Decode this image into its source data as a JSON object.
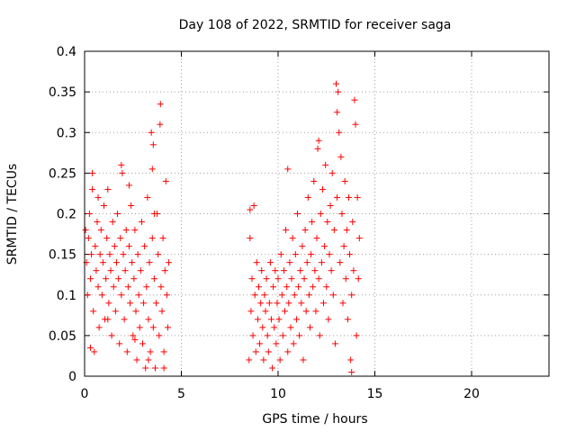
{
  "chart_data": {
    "type": "scatter",
    "title": "Day 108 of 2022, SRMTID for receiver saga",
    "xlabel": "GPS time / hours",
    "ylabel": "SRMTID / TECUs",
    "xlim": [
      0,
      24
    ],
    "ylim": [
      0,
      0.4
    ],
    "xticks": [
      0,
      5,
      10,
      15,
      20
    ],
    "xtick_labels": [
      "0",
      "5",
      "10",
      "15",
      "20"
    ],
    "yticks": [
      0,
      0.05,
      0.1,
      0.15,
      0.2,
      0.25,
      0.3,
      0.35,
      0.4
    ],
    "ytick_labels": [
      "0",
      "0.05",
      "0.1",
      "0.15",
      "0.2",
      "0.25",
      "0.3",
      "0.35",
      "0.4"
    ],
    "grid": true,
    "marker": "+",
    "marker_color": "#ff0000",
    "series": [
      {
        "name": "SRMTID",
        "points": [
          [
            0.05,
            0.18
          ],
          [
            0.1,
            0.14
          ],
          [
            0.15,
            0.1
          ],
          [
            0.2,
            0.17
          ],
          [
            0.25,
            0.2
          ],
          [
            0.3,
            0.12
          ],
          [
            0.35,
            0.15
          ],
          [
            0.4,
            0.23
          ],
          [
            0.45,
            0.08
          ],
          [
            0.5,
            0.03
          ],
          [
            0.55,
            0.16
          ],
          [
            0.6,
            0.13
          ],
          [
            0.65,
            0.19
          ],
          [
            0.7,
            0.11
          ],
          [
            0.75,
            0.06
          ],
          [
            0.8,
            0.15
          ],
          [
            0.85,
            0.18
          ],
          [
            0.9,
            0.1
          ],
          [
            0.95,
            0.14
          ],
          [
            1.0,
            0.21
          ],
          [
            1.05,
            0.07
          ],
          [
            1.1,
            0.12
          ],
          [
            1.15,
            0.17
          ],
          [
            1.2,
            0.23
          ],
          [
            1.25,
            0.09
          ],
          [
            1.3,
            0.15
          ],
          [
            1.35,
            0.13
          ],
          [
            1.4,
            0.05
          ],
          [
            1.45,
            0.19
          ],
          [
            1.5,
            0.11
          ],
          [
            1.55,
            0.16
          ],
          [
            1.6,
            0.08
          ],
          [
            1.65,
            0.14
          ],
          [
            1.7,
            0.2
          ],
          [
            1.75,
            0.12
          ],
          [
            1.8,
            0.04
          ],
          [
            1.85,
            0.17
          ],
          [
            1.9,
            0.1
          ],
          [
            1.95,
            0.25
          ],
          [
            2.0,
            0.15
          ],
          [
            2.05,
            0.07
          ],
          [
            2.1,
            0.13
          ],
          [
            2.15,
            0.18
          ],
          [
            2.2,
            0.03
          ],
          [
            2.25,
            0.11
          ],
          [
            2.3,
            0.16
          ],
          [
            2.35,
            0.09
          ],
          [
            2.4,
            0.21
          ],
          [
            2.45,
            0.14
          ],
          [
            2.5,
            0.05
          ],
          [
            2.55,
            0.12
          ],
          [
            2.6,
            0.18
          ],
          [
            2.65,
            0.08
          ],
          [
            2.7,
            0.02
          ],
          [
            2.75,
            0.15
          ],
          [
            2.8,
            0.1
          ],
          [
            2.85,
            0.06
          ],
          [
            2.9,
            0.13
          ],
          [
            2.95,
            0.19
          ],
          [
            3.0,
            0.04
          ],
          [
            3.05,
            0.09
          ],
          [
            3.1,
            0.16
          ],
          [
            3.15,
            0.01
          ],
          [
            3.2,
            0.11
          ],
          [
            3.25,
            0.22
          ],
          [
            3.3,
            0.07
          ],
          [
            3.35,
            0.14
          ],
          [
            3.4,
            0.03
          ],
          [
            3.45,
            0.3
          ],
          [
            3.5,
            0.17
          ],
          [
            3.55,
            0.06
          ],
          [
            3.6,
            0.12
          ],
          [
            3.65,
            0.01
          ],
          [
            3.7,
            0.09
          ],
          [
            3.75,
            0.2
          ],
          [
            3.8,
            0.15
          ],
          [
            3.85,
            0.05
          ],
          [
            3.9,
            0.31
          ],
          [
            3.95,
            0.11
          ],
          [
            4.0,
            0.08
          ],
          [
            4.05,
            0.17
          ],
          [
            4.1,
            0.03
          ],
          [
            4.15,
            0.13
          ],
          [
            4.2,
            0.24
          ],
          [
            4.25,
            0.1
          ],
          [
            4.3,
            0.06
          ],
          [
            4.35,
            0.14
          ],
          [
            3.92,
            0.335
          ],
          [
            3.55,
            0.285
          ],
          [
            3.5,
            0.255
          ],
          [
            0.4,
            0.25
          ],
          [
            1.9,
            0.26
          ],
          [
            2.3,
            0.235
          ],
          [
            3.6,
            0.2
          ],
          [
            0.3,
            0.035
          ],
          [
            1.2,
            0.07
          ],
          [
            2.6,
            0.045
          ],
          [
            3.3,
            0.02
          ],
          [
            4.1,
            0.01
          ],
          [
            0.7,
            0.22
          ],
          [
            8.5,
            0.02
          ],
          [
            8.55,
            0.17
          ],
          [
            8.6,
            0.08
          ],
          [
            8.65,
            0.12
          ],
          [
            8.7,
            0.05
          ],
          [
            8.75,
            0.21
          ],
          [
            8.8,
            0.1
          ],
          [
            8.85,
            0.03
          ],
          [
            8.9,
            0.14
          ],
          [
            8.95,
            0.07
          ],
          [
            9.0,
            0.11
          ],
          [
            9.05,
            0.04
          ],
          [
            9.1,
            0.09
          ],
          [
            9.15,
            0.13
          ],
          [
            9.2,
            0.06
          ],
          [
            9.25,
            0.02
          ],
          [
            9.3,
            0.1
          ],
          [
            9.35,
            0.08
          ],
          [
            9.4,
            0.12
          ],
          [
            9.45,
            0.05
          ],
          [
            9.5,
            0.03
          ],
          [
            9.55,
            0.09
          ],
          [
            9.6,
            0.14
          ],
          [
            9.65,
            0.07
          ],
          [
            9.7,
            0.01
          ],
          [
            9.75,
            0.11
          ],
          [
            9.8,
            0.06
          ],
          [
            9.85,
            0.13
          ],
          [
            9.9,
            0.04
          ],
          [
            9.95,
            0.09
          ],
          [
            10.0,
            0.12
          ],
          [
            10.05,
            0.07
          ],
          [
            10.1,
            0.02
          ],
          [
            10.15,
            0.15
          ],
          [
            10.2,
            0.1
          ],
          [
            10.25,
            0.05
          ],
          [
            10.3,
            0.13
          ],
          [
            10.35,
            0.08
          ],
          [
            10.4,
            0.18
          ],
          [
            10.45,
            0.11
          ],
          [
            10.5,
            0.03
          ],
          [
            10.55,
            0.09
          ],
          [
            10.6,
            0.14
          ],
          [
            10.65,
            0.06
          ],
          [
            10.7,
            0.12
          ],
          [
            10.75,
            0.17
          ],
          [
            10.8,
            0.04
          ],
          [
            10.85,
            0.1
          ],
          [
            10.9,
            0.15
          ],
          [
            10.95,
            0.07
          ],
          [
            11.0,
            0.2
          ],
          [
            11.05,
            0.11
          ],
          [
            11.1,
            0.05
          ],
          [
            11.15,
            0.13
          ],
          [
            11.2,
            0.09
          ],
          [
            11.25,
            0.16
          ],
          [
            11.3,
            0.02
          ],
          [
            11.35,
            0.12
          ],
          [
            11.4,
            0.18
          ],
          [
            11.45,
            0.08
          ],
          [
            11.5,
            0.14
          ],
          [
            11.55,
            0.22
          ],
          [
            11.6,
            0.1
          ],
          [
            11.65,
            0.06
          ],
          [
            11.7,
            0.15
          ],
          [
            11.75,
            0.19
          ],
          [
            11.8,
            0.11
          ],
          [
            11.85,
            0.24
          ],
          [
            11.9,
            0.13
          ],
          [
            11.95,
            0.08
          ],
          [
            12.0,
            0.17
          ],
          [
            12.05,
            0.28
          ],
          [
            12.1,
            0.12
          ],
          [
            12.15,
            0.05
          ],
          [
            12.2,
            0.2
          ],
          [
            12.25,
            0.14
          ],
          [
            12.3,
            0.23
          ],
          [
            12.35,
            0.09
          ],
          [
            12.4,
            0.16
          ],
          [
            12.45,
            0.26
          ],
          [
            12.5,
            0.11
          ],
          [
            12.55,
            0.19
          ],
          [
            12.6,
            0.07
          ],
          [
            12.65,
            0.15
          ],
          [
            12.7,
            0.21
          ],
          [
            12.75,
            0.13
          ],
          [
            12.8,
            0.25
          ],
          [
            12.85,
            0.1
          ],
          [
            12.9,
            0.18
          ],
          [
            12.95,
            0.04
          ],
          [
            13.0,
            0.36
          ],
          [
            13.05,
            0.22
          ],
          [
            13.1,
            0.35
          ],
          [
            13.15,
            0.3
          ],
          [
            13.2,
            0.14
          ],
          [
            13.25,
            0.27
          ],
          [
            13.3,
            0.2
          ],
          [
            13.35,
            0.09
          ],
          [
            13.4,
            0.16
          ],
          [
            13.45,
            0.24
          ],
          [
            13.5,
            0.12
          ],
          [
            13.55,
            0.18
          ],
          [
            13.6,
            0.07
          ],
          [
            13.65,
            0.22
          ],
          [
            13.7,
            0.15
          ],
          [
            13.75,
            0.02
          ],
          [
            13.8,
            0.1
          ],
          [
            13.85,
            0.19
          ],
          [
            13.9,
            0.13
          ],
          [
            13.95,
            0.34
          ],
          [
            14.0,
            0.31
          ],
          [
            14.05,
            0.05
          ],
          [
            14.1,
            0.22
          ],
          [
            14.15,
            0.12
          ],
          [
            14.2,
            0.17
          ],
          [
            13.05,
            0.325
          ],
          [
            12.1,
            0.29
          ],
          [
            10.5,
            0.255
          ],
          [
            8.55,
            0.205
          ],
          [
            13.8,
            0.005
          ]
        ]
      }
    ]
  }
}
